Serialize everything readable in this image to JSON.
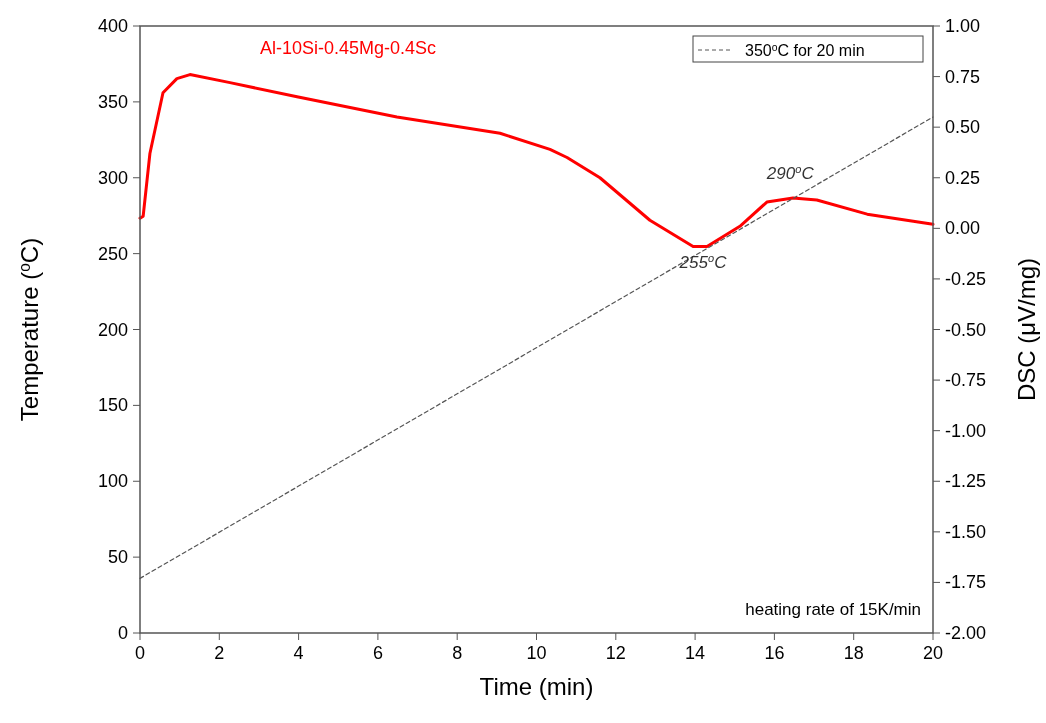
{
  "chart_data": {
    "type": "line",
    "xlabel": "Time (min)",
    "ylabel": "Temperature ($^{o}$C)",
    "y2label": "DSC (μV/mg)",
    "xlim": [
      0,
      20
    ],
    "xticks": [
      0,
      2,
      4,
      6,
      8,
      10,
      12,
      14,
      16,
      18,
      20
    ],
    "ylim": [
      0,
      400
    ],
    "yticks": [
      0,
      50,
      100,
      150,
      200,
      250,
      300,
      350,
      400
    ],
    "y2lim": [
      -2,
      1
    ],
    "y2ticks": [
      {
        "value": -2,
        "label": "-2.00"
      },
      {
        "value": -1.75,
        "label": "-1.75"
      },
      {
        "value": -1.5,
        "label": "-1.50"
      },
      {
        "value": -1.25,
        "label": "-1.25"
      },
      {
        "value": -1,
        "label": "-1.00"
      },
      {
        "value": -0.75,
        "label": "-0.75"
      },
      {
        "value": -0.5,
        "label": "-0.50"
      },
      {
        "value": -0.25,
        "label": "-0.25"
      },
      {
        "value": 0,
        "label": "0.00"
      },
      {
        "value": 0.25,
        "label": "0.25"
      },
      {
        "value": 0.5,
        "label": "0.50"
      },
      {
        "value": 0.75,
        "label": "0.75"
      },
      {
        "value": 1,
        "label": "1.00"
      }
    ],
    "legend": "top right",
    "grid": false,
    "series": [
      {
        "name": "Al-10Si-0.45Mg-0.4Sc",
        "color": "#ff0000",
        "axis": "y2",
        "line_style": "solid",
        "x": [
          0,
          0.08,
          0.25,
          0.58,
          0.93,
          1.26,
          2.27,
          3.96,
          6.48,
          9.08,
          10.34,
          10.77,
          11.6,
          12.86,
          13.95,
          14.3,
          15.13,
          15.81,
          16.47,
          17.07,
          18.34,
          20
        ],
        "values": [
          0.05,
          0.06,
          0.37,
          0.67,
          0.74,
          0.76,
          0.72,
          0.65,
          0.55,
          0.47,
          0.39,
          0.35,
          0.25,
          0.04,
          -0.09,
          -0.09,
          0.01,
          0.13,
          0.15,
          0.14,
          0.07,
          0.02
        ]
      },
      {
        "name": "350$^{o}$C for 20 min",
        "color": "#555555",
        "line_style": "dashed",
        "x": [
          0,
          20
        ],
        "values": [
          36,
          340
        ]
      }
    ],
    "annotations": [
      {
        "text": "255$^{o}$C",
        "x": 14.2,
        "y": 255
      },
      {
        "text": "290$^{o}$C",
        "x": 16.4,
        "y": 290
      },
      "heating rate of 15K/min"
    ]
  }
}
